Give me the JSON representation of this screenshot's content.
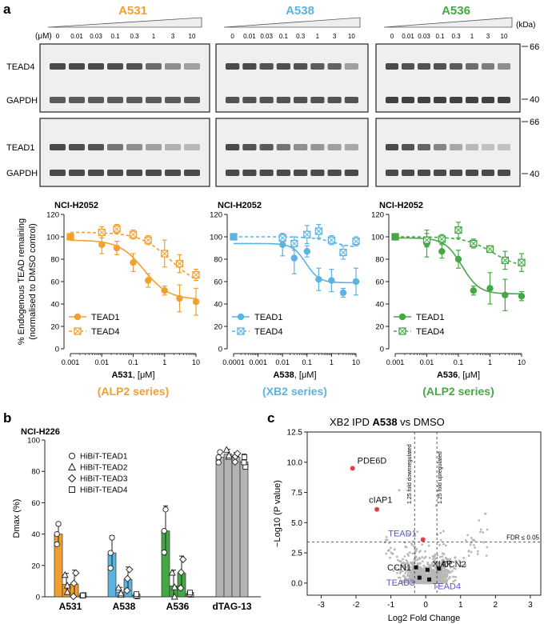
{
  "panel_labels": {
    "a": "a",
    "b": "b",
    "c": "c"
  },
  "colors": {
    "orange": "#f0a030",
    "blue": "#5bb3e0",
    "green": "#45a845",
    "grey": "#b4b4b4",
    "red": "#e04040",
    "purple": "#5555cc"
  },
  "blots": {
    "conc_label": "(μM)",
    "kda_label": "(kDa)",
    "concentrations": [
      "0",
      "0.01",
      "0.03",
      "0.1",
      "0.3",
      "1",
      "3",
      "10"
    ],
    "markers": {
      "top": "66",
      "bottom": "40"
    },
    "row_labels": {
      "tead4": "TEAD4",
      "tead1": "TEAD1",
      "gapdh": "GAPDH"
    },
    "compounds": [
      {
        "name": "A531",
        "color": "#f0a030",
        "tead4": [
          0.95,
          0.95,
          0.95,
          0.92,
          0.9,
          0.75,
          0.55,
          0.45
        ],
        "tead1": [
          0.95,
          0.92,
          0.9,
          0.7,
          0.55,
          0.45,
          0.35,
          0.3
        ],
        "gapdh1": [
          0.85,
          0.85,
          0.85,
          0.85,
          0.85,
          0.85,
          0.85,
          0.85
        ],
        "gapdh2": [
          0.95,
          0.95,
          0.95,
          0.95,
          0.95,
          0.95,
          0.95,
          0.95
        ]
      },
      {
        "name": "A538",
        "color": "#5bb3e0",
        "tead4": [
          0.95,
          0.95,
          0.9,
          0.92,
          0.9,
          0.85,
          0.8,
          0.45
        ],
        "tead1": [
          0.95,
          0.9,
          0.85,
          0.7,
          0.55,
          0.5,
          0.45,
          0.4
        ],
        "gapdh1": [
          0.9,
          0.9,
          0.9,
          0.9,
          0.9,
          0.9,
          0.9,
          0.9
        ],
        "gapdh2": [
          0.95,
          0.95,
          0.95,
          0.95,
          0.95,
          0.95,
          0.95,
          0.95
        ]
      },
      {
        "name": "A536",
        "color": "#45a845",
        "tead4": [
          0.95,
          0.9,
          0.9,
          0.9,
          0.85,
          0.75,
          0.65,
          0.55
        ],
        "tead1": [
          0.95,
          0.9,
          0.8,
          0.6,
          0.4,
          0.3,
          0.25,
          0.25
        ],
        "gapdh1": [
          1.0,
          1.0,
          1.0,
          1.0,
          1.0,
          1.0,
          1.0,
          1.0
        ],
        "gapdh2": [
          0.95,
          0.95,
          0.95,
          0.95,
          0.95,
          0.95,
          0.95,
          0.95
        ]
      }
    ]
  },
  "chart_data": [
    {
      "type": "scatter",
      "title": "NCI-H2052",
      "compound": "A531",
      "xlabel_suffix": ", [μM]",
      "ylabel_line1": "% Endogenous TEAD remaining",
      "ylabel_line2": "(normalised to DMSO control)",
      "x_scale": "log",
      "xlim": [
        0.001,
        10
      ],
      "ylim": [
        0,
        120
      ],
      "yticks": [
        0,
        20,
        40,
        60,
        80,
        100,
        120
      ],
      "xticks": [
        0.001,
        0.01,
        0.1,
        1,
        10
      ],
      "xticklabels": [
        "0.001",
        "0.01",
        "0.1",
        "1",
        "10"
      ],
      "series_label": "(ALP2 series)",
      "color": "#f0a030",
      "legend_position": "bottom-left",
      "series": [
        {
          "name": "TEAD1",
          "marker": "circle",
          "line": "solid",
          "x": [
            0.01,
            0.03,
            0.1,
            0.3,
            1,
            3,
            10
          ],
          "y": [
            93,
            90,
            77,
            61,
            52,
            45,
            42
          ],
          "err": [
            8,
            6,
            8,
            6,
            4,
            12,
            12
          ],
          "fit": {
            "top": 97,
            "bottom": 44,
            "ic50": 0.22,
            "hill": 1.1
          }
        },
        {
          "name": "TEAD4",
          "marker": "crossed-square",
          "line": "dashed",
          "x": [
            0.001,
            0.01,
            0.03,
            0.1,
            0.3,
            1,
            3,
            10
          ],
          "y": [
            100,
            104,
            107,
            102,
            97,
            85,
            76,
            66
          ],
          "err": [
            2,
            5,
            4,
            4,
            4,
            12,
            8,
            5
          ],
          "fit": {
            "top": 104,
            "bottom": 55,
            "ic50": 1.5,
            "hill": 0.9
          }
        }
      ]
    },
    {
      "type": "scatter",
      "title": "NCI-H2052",
      "compound": "A538",
      "xlabel_suffix": ", [μM]",
      "x_scale": "log",
      "xlim": [
        0.0001,
        10
      ],
      "ylim": [
        0,
        120
      ],
      "yticks": [
        0,
        20,
        40,
        60,
        80,
        100,
        120
      ],
      "xticks": [
        0.0001,
        0.001,
        0.01,
        0.1,
        1,
        10
      ],
      "xticklabels": [
        "0.0001",
        "0.001",
        "0.01",
        "0.1",
        "1",
        "10"
      ],
      "series_label": "(XB2 series)",
      "color": "#5bb3e0",
      "legend_position": "bottom-left",
      "series": [
        {
          "name": "TEAD1",
          "marker": "circle",
          "line": "solid",
          "x": [
            0.01,
            0.03,
            0.1,
            0.3,
            1,
            3,
            10
          ],
          "y": [
            93,
            81,
            87,
            62,
            61,
            50,
            60
          ],
          "err": [
            10,
            14,
            5,
            10,
            10,
            4,
            12
          ],
          "fit": {
            "top": 94,
            "bottom": 59,
            "ic50": 0.09,
            "hill": 1.6
          }
        },
        {
          "name": "TEAD4",
          "marker": "crossed-square",
          "line": "dashed",
          "x": [
            0.0001,
            0.01,
            0.03,
            0.1,
            0.3,
            1,
            3,
            10
          ],
          "y": [
            100,
            99,
            94,
            102,
            105,
            97,
            86,
            96
          ],
          "err": [
            2,
            4,
            6,
            8,
            6,
            4,
            6,
            4
          ],
          "fit": {
            "top": 100,
            "bottom": 90,
            "ic50": 1.2,
            "hill": 1.0
          }
        }
      ]
    },
    {
      "type": "scatter",
      "title": "NCI-H2052",
      "compound": "A536",
      "xlabel_suffix": ", [μM]",
      "x_scale": "log",
      "xlim": [
        0.001,
        10
      ],
      "ylim": [
        0,
        120
      ],
      "yticks": [
        0,
        20,
        40,
        60,
        80,
        100,
        120
      ],
      "xticks": [
        0.001,
        0.01,
        0.1,
        1,
        10
      ],
      "xticklabels": [
        "0.001",
        "0.01",
        "0.1",
        "1",
        "10"
      ],
      "series_label": "(ALP2 series)",
      "color": "#45a845",
      "legend_position": "bottom-left",
      "series": [
        {
          "name": "TEAD1",
          "marker": "circle",
          "line": "solid",
          "x": [
            0.01,
            0.03,
            0.1,
            0.3,
            1,
            3,
            10
          ],
          "y": [
            94,
            87,
            80,
            52,
            54,
            48,
            47
          ],
          "err": [
            12,
            6,
            8,
            4,
            14,
            14,
            4
          ],
          "fit": {
            "top": 99,
            "bottom": 49,
            "ic50": 0.13,
            "hill": 1.6
          }
        },
        {
          "name": "TEAD4",
          "marker": "crossed-square",
          "line": "dashed",
          "x": [
            0.001,
            0.01,
            0.03,
            0.1,
            0.3,
            1,
            3,
            10
          ],
          "y": [
            100,
            97,
            98,
            106,
            94,
            89,
            79,
            77
          ],
          "err": [
            2,
            6,
            4,
            7,
            4,
            3,
            8,
            8
          ],
          "fit": {
            "top": 100,
            "bottom": 72,
            "ic50": 1.2,
            "hill": 1.0
          }
        }
      ]
    },
    {
      "type": "bar",
      "title": "NCI-H226",
      "ylabel": "Dmax (%)",
      "ylim": [
        0,
        100
      ],
      "yticks": [
        0,
        20,
        40,
        60,
        80,
        100
      ],
      "categories": [
        "A531",
        "A538",
        "A536",
        "dTAG-13"
      ],
      "category_colors": [
        "#f0a030",
        "#5bb3e0",
        "#45a845",
        "#b4b4b4"
      ],
      "legend_position": "top-left",
      "series": [
        {
          "name": "HiBiT-TEAD1",
          "marker": "circle",
          "values": [
            40,
            28,
            42,
            89
          ],
          "err": [
            7,
            11,
            16,
            3
          ]
        },
        {
          "name": "HiBiT-TEAD2",
          "marker": "triangle",
          "values": [
            8,
            3,
            7,
            91
          ],
          "err": [
            7,
            3,
            10,
            3
          ]
        },
        {
          "name": "HiBiT-TEAD3",
          "marker": "diamond",
          "values": [
            8,
            11,
            15,
            89
          ],
          "err": [
            9,
            8,
            11,
            3
          ]
        },
        {
          "name": "HiBiT-TEAD4",
          "marker": "square",
          "values": [
            1,
            1,
            2,
            86
          ],
          "err": [
            1,
            2,
            2,
            5
          ]
        }
      ]
    },
    {
      "type": "scatter",
      "title_prefix": "XB2 IPD ",
      "title_compound": "A538",
      "title_suffix": " vs DMSO",
      "xlabel": "Log2 Fold Change",
      "ylabel": "−Log10 (P value)",
      "xlim": [
        -3.4,
        3.3
      ],
      "ylim": [
        -1.0,
        12.5
      ],
      "xticks": [
        -3,
        -2,
        -1,
        0,
        1,
        2,
        3
      ],
      "yticks": [
        0.0,
        2.5,
        5.0,
        7.5,
        10.0,
        12.5
      ],
      "yticklabels": [
        "0.0",
        "2.5",
        "5.0",
        "7.5",
        "10.0",
        "12.5"
      ],
      "fold_lines": [
        -0.32,
        0.32
      ],
      "fold_line_labels": [
        "1.25 fold downregulated",
        "1.25 fold upregulated"
      ],
      "fdr_y": 3.4,
      "fdr_label": "FDR ≤ 0.05",
      "highlights": [
        {
          "name": "PDE6D",
          "x": -2.1,
          "y": 9.5,
          "color": "#e04040"
        },
        {
          "name": "cIAP1",
          "x": -1.4,
          "y": 6.1,
          "color": "#e04040"
        },
        {
          "name": "TEAD1",
          "x": -0.08,
          "y": 3.6,
          "color": "#e04040",
          "label_color": "#5555cc"
        },
        {
          "name": "CCN1",
          "x": -0.28,
          "y": 1.3,
          "color": "#111111"
        },
        {
          "name": "XIAP",
          "x": 0.05,
          "y": 1.1,
          "color": "#111111"
        },
        {
          "name": "CCN2",
          "x": 0.38,
          "y": 1.2,
          "color": "#111111"
        },
        {
          "name": "TEAD3",
          "x": -0.18,
          "y": 0.45,
          "color": "#111111",
          "label_color": "#5555cc"
        },
        {
          "name": "TEAD4",
          "x": 0.1,
          "y": 0.3,
          "color": "#111111",
          "label_color": "#5555cc"
        }
      ]
    }
  ]
}
